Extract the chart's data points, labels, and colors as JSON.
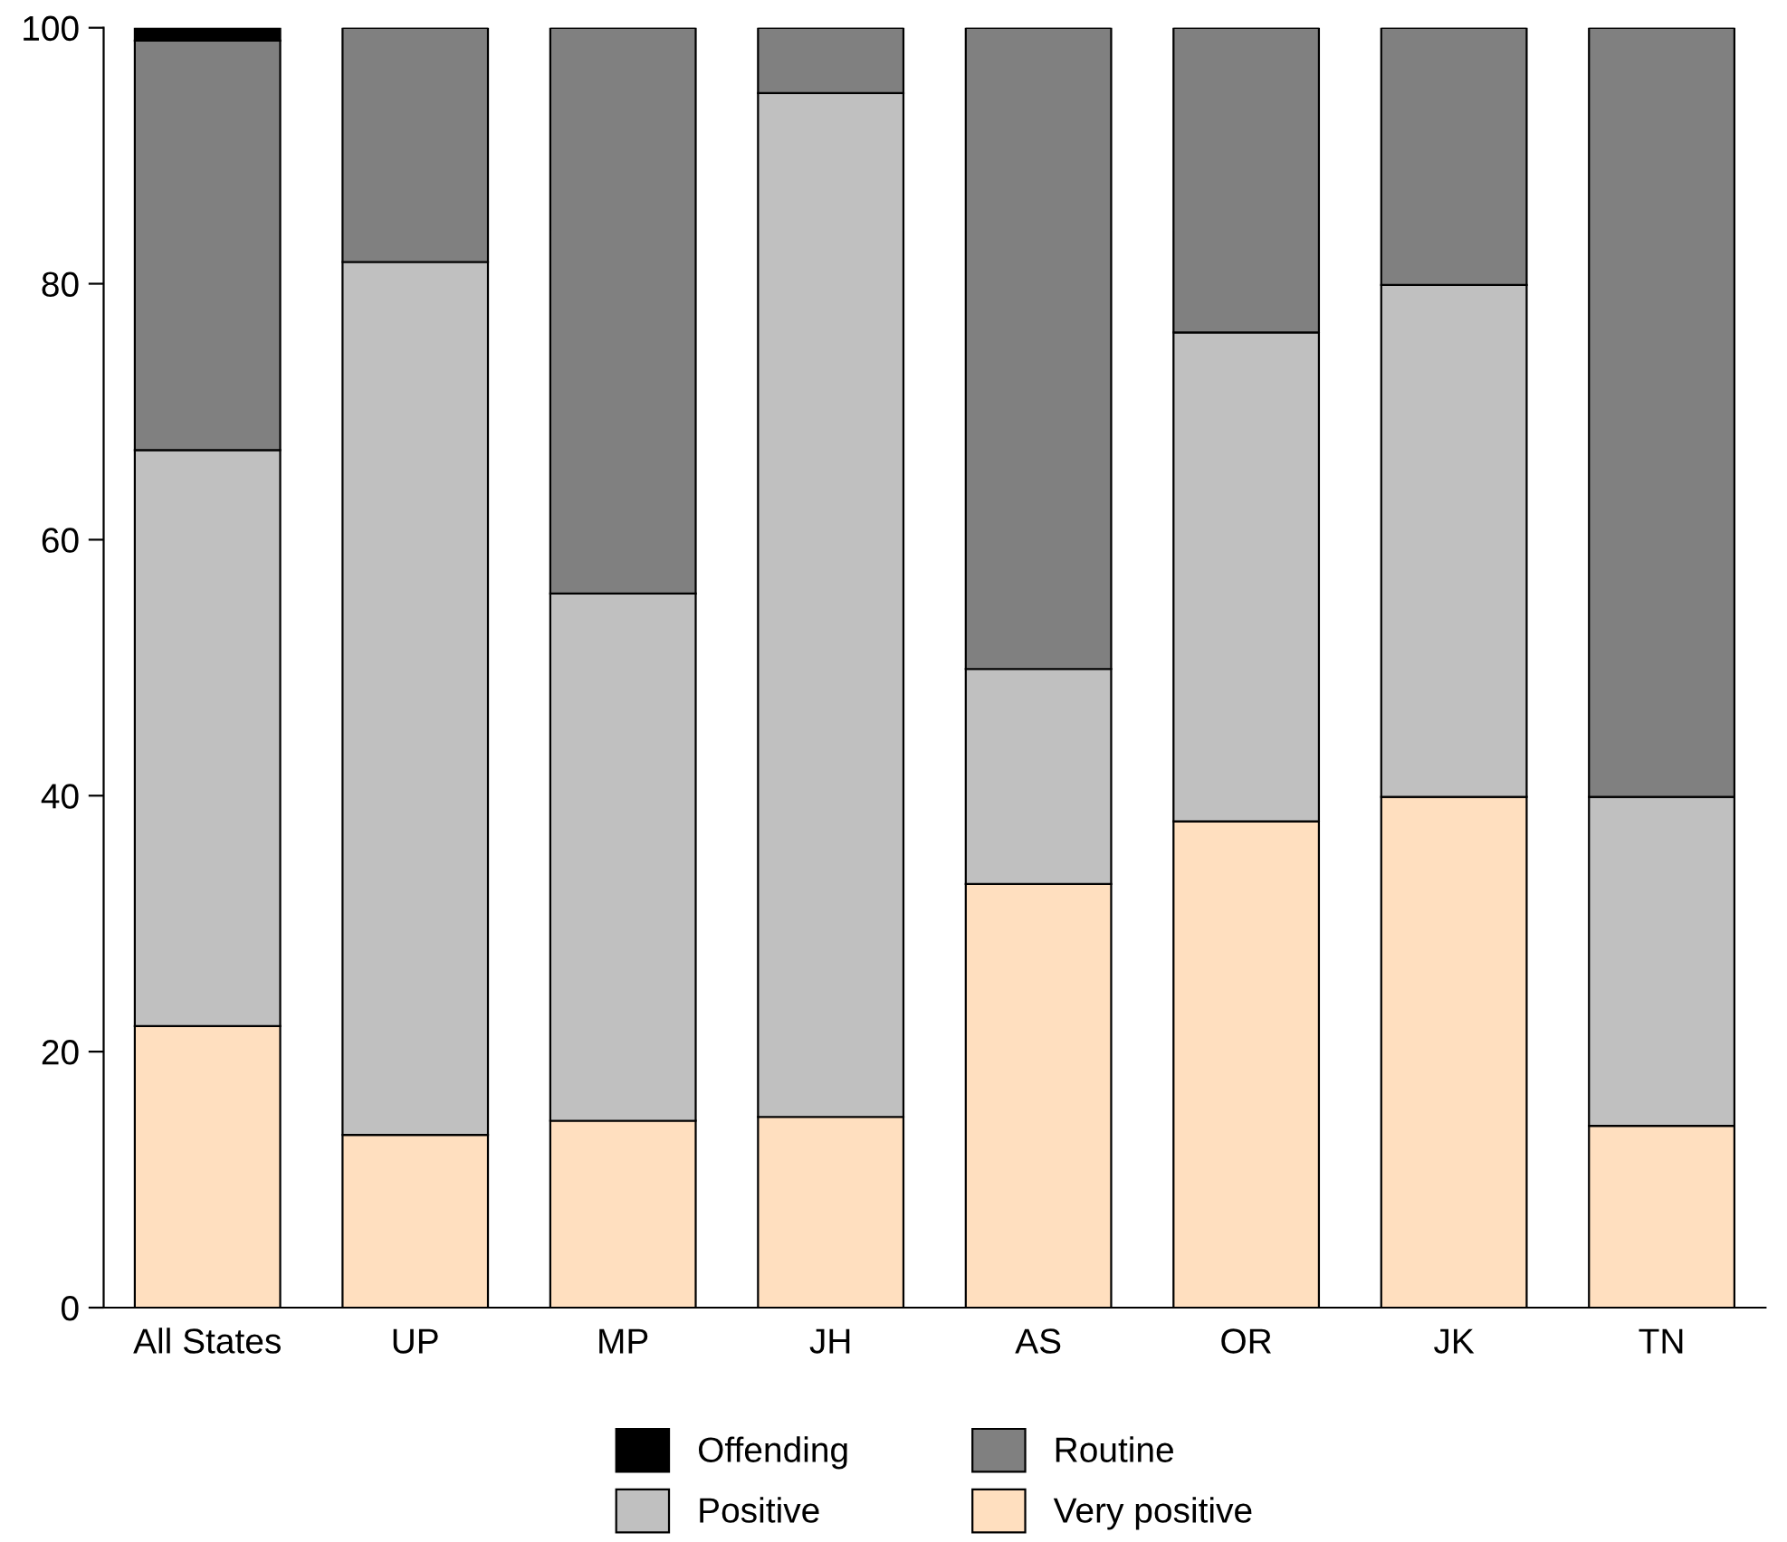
{
  "chart_data": {
    "type": "bar",
    "stacked": true,
    "categories": [
      "All States",
      "UP",
      "MP",
      "JH",
      "AS",
      "OR",
      "JK",
      "TN"
    ],
    "series": [
      {
        "name": "Very positive",
        "color": "#ffdfbf",
        "values": [
          22,
          13.5,
          14.6,
          14.9,
          33.1,
          38,
          39.9,
          14.2
        ]
      },
      {
        "name": "Positive",
        "color": "#c0c0c0",
        "values": [
          45,
          68.2,
          41.2,
          80,
          16.8,
          38.2,
          40,
          25.7
        ]
      },
      {
        "name": "Routine",
        "color": "#808080",
        "values": [
          32,
          18.3,
          44.2,
          5.1,
          50.1,
          23.8,
          20.1,
          60.1
        ]
      },
      {
        "name": "Offending",
        "color": "#000000",
        "values": [
          1,
          0,
          0,
          0,
          0,
          0,
          0,
          0
        ]
      }
    ],
    "ylim": [
      0,
      100
    ],
    "yticks": [
      0,
      20,
      40,
      60,
      80,
      100
    ],
    "grid": false,
    "legend": "bottom"
  }
}
